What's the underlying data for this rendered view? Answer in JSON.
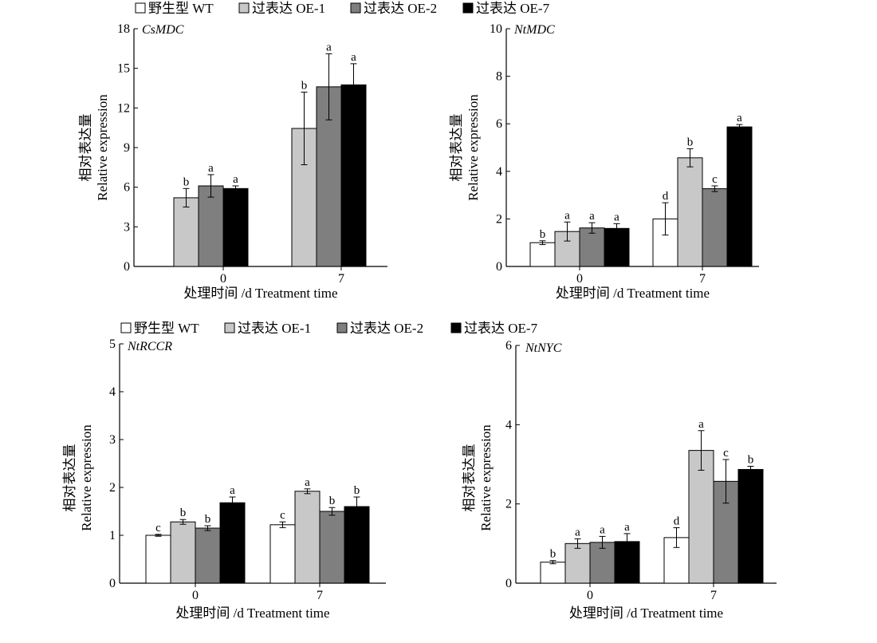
{
  "legends": [
    [
      "野生型 WT",
      "过表达 OE-1",
      "过表达 OE-2",
      "过表达 OE-7"
    ],
    [
      "野生型 WT",
      "过表达 OE-1",
      "过表达 OE-2",
      "过表达 OE-7"
    ]
  ],
  "colors": {
    "WT": "#ffffff",
    "OE-1": "#c8c8c8",
    "OE-2": "#7f7f7f",
    "OE-7": "#000000"
  },
  "chart_data": [
    {
      "type": "bar",
      "title": "CsMDC",
      "xlabel": "处理时间 /d  Treatment time",
      "ylabel_cn": "相对表达量",
      "ylabel_en": "Relative expression",
      "categories": [
        "0",
        "7"
      ],
      "ylim": [
        0,
        18
      ],
      "yticks": [
        0,
        3,
        6,
        9,
        12,
        15,
        18
      ],
      "series": [
        {
          "name": "过表达 OE-1",
          "values": [
            5.2,
            10.45
          ],
          "errors": [
            0.7,
            2.75
          ],
          "letters": [
            "b",
            "b"
          ]
        },
        {
          "name": "过表达 OE-2",
          "values": [
            6.1,
            13.6
          ],
          "errors": [
            0.85,
            2.5
          ],
          "letters": [
            "a",
            "a"
          ]
        },
        {
          "name": "过表达 OE-7",
          "values": [
            5.9,
            13.75
          ],
          "errors": [
            0.2,
            1.6
          ],
          "letters": [
            "a",
            "a"
          ]
        }
      ]
    },
    {
      "type": "bar",
      "title": "NtMDC",
      "xlabel": "处理时间 /d  Treatment time",
      "ylabel_cn": "相对表达量",
      "ylabel_en": "Relative expression",
      "categories": [
        "0",
        "7"
      ],
      "ylim": [
        0,
        10
      ],
      "yticks": [
        0,
        2,
        4,
        6,
        8,
        10
      ],
      "series": [
        {
          "name": "野生型 WT",
          "values": [
            1.0,
            2.0
          ],
          "errors": [
            0.08,
            0.68
          ],
          "letters": [
            "b",
            "d"
          ]
        },
        {
          "name": "过表达 OE-1",
          "values": [
            1.47,
            4.57
          ],
          "errors": [
            0.4,
            0.38
          ],
          "letters": [
            "a",
            "b"
          ]
        },
        {
          "name": "过表达 OE-2",
          "values": [
            1.62,
            3.27
          ],
          "errors": [
            0.22,
            0.12
          ],
          "letters": [
            "a",
            "c"
          ]
        },
        {
          "name": "过表达 OE-7",
          "values": [
            1.6,
            5.87
          ],
          "errors": [
            0.2,
            0.1
          ],
          "letters": [
            "a",
            "a"
          ]
        }
      ]
    },
    {
      "type": "bar",
      "title": "NtRCCR",
      "xlabel": "处理时间 /d  Treatment time",
      "ylabel_cn": "相对表达量",
      "ylabel_en": "Relative expression",
      "categories": [
        "0",
        "7"
      ],
      "ylim": [
        0,
        5
      ],
      "yticks": [
        0,
        1,
        2,
        3,
        4,
        5
      ],
      "series": [
        {
          "name": "野生型 WT",
          "values": [
            1.0,
            1.22
          ],
          "errors": [
            0.02,
            0.06
          ],
          "letters": [
            "c",
            "c"
          ]
        },
        {
          "name": "过表达 OE-1",
          "values": [
            1.28,
            1.92
          ],
          "errors": [
            0.05,
            0.05
          ],
          "letters": [
            "b",
            "a"
          ]
        },
        {
          "name": "过表达 OE-2",
          "values": [
            1.15,
            1.5
          ],
          "errors": [
            0.05,
            0.08
          ],
          "letters": [
            "b",
            "b"
          ]
        },
        {
          "name": "过表达 OE-7",
          "values": [
            1.68,
            1.6
          ],
          "errors": [
            0.12,
            0.2
          ],
          "letters": [
            "a",
            "b"
          ]
        }
      ]
    },
    {
      "type": "bar",
      "title": "NtNYC",
      "xlabel": "处理时间 /d  Treatment time",
      "ylabel_cn": "相对表达量",
      "ylabel_en": "Relative expression",
      "categories": [
        "0",
        "7"
      ],
      "ylim": [
        0,
        6
      ],
      "yticks": [
        0,
        2,
        4,
        6
      ],
      "series": [
        {
          "name": "野生型 WT",
          "values": [
            0.53,
            1.15
          ],
          "errors": [
            0.04,
            0.25
          ],
          "letters": [
            "b",
            "d"
          ]
        },
        {
          "name": "过表达 OE-1",
          "values": [
            1.0,
            3.35
          ],
          "errors": [
            0.12,
            0.5
          ],
          "letters": [
            "a",
            "a"
          ]
        },
        {
          "name": "过表达 OE-2",
          "values": [
            1.03,
            2.57
          ],
          "errors": [
            0.15,
            0.55
          ],
          "letters": [
            "a",
            "c"
          ]
        },
        {
          "name": "过表达 OE-7",
          "values": [
            1.05,
            2.87
          ],
          "errors": [
            0.2,
            0.08
          ],
          "letters": [
            "a",
            "b"
          ]
        }
      ]
    }
  ]
}
